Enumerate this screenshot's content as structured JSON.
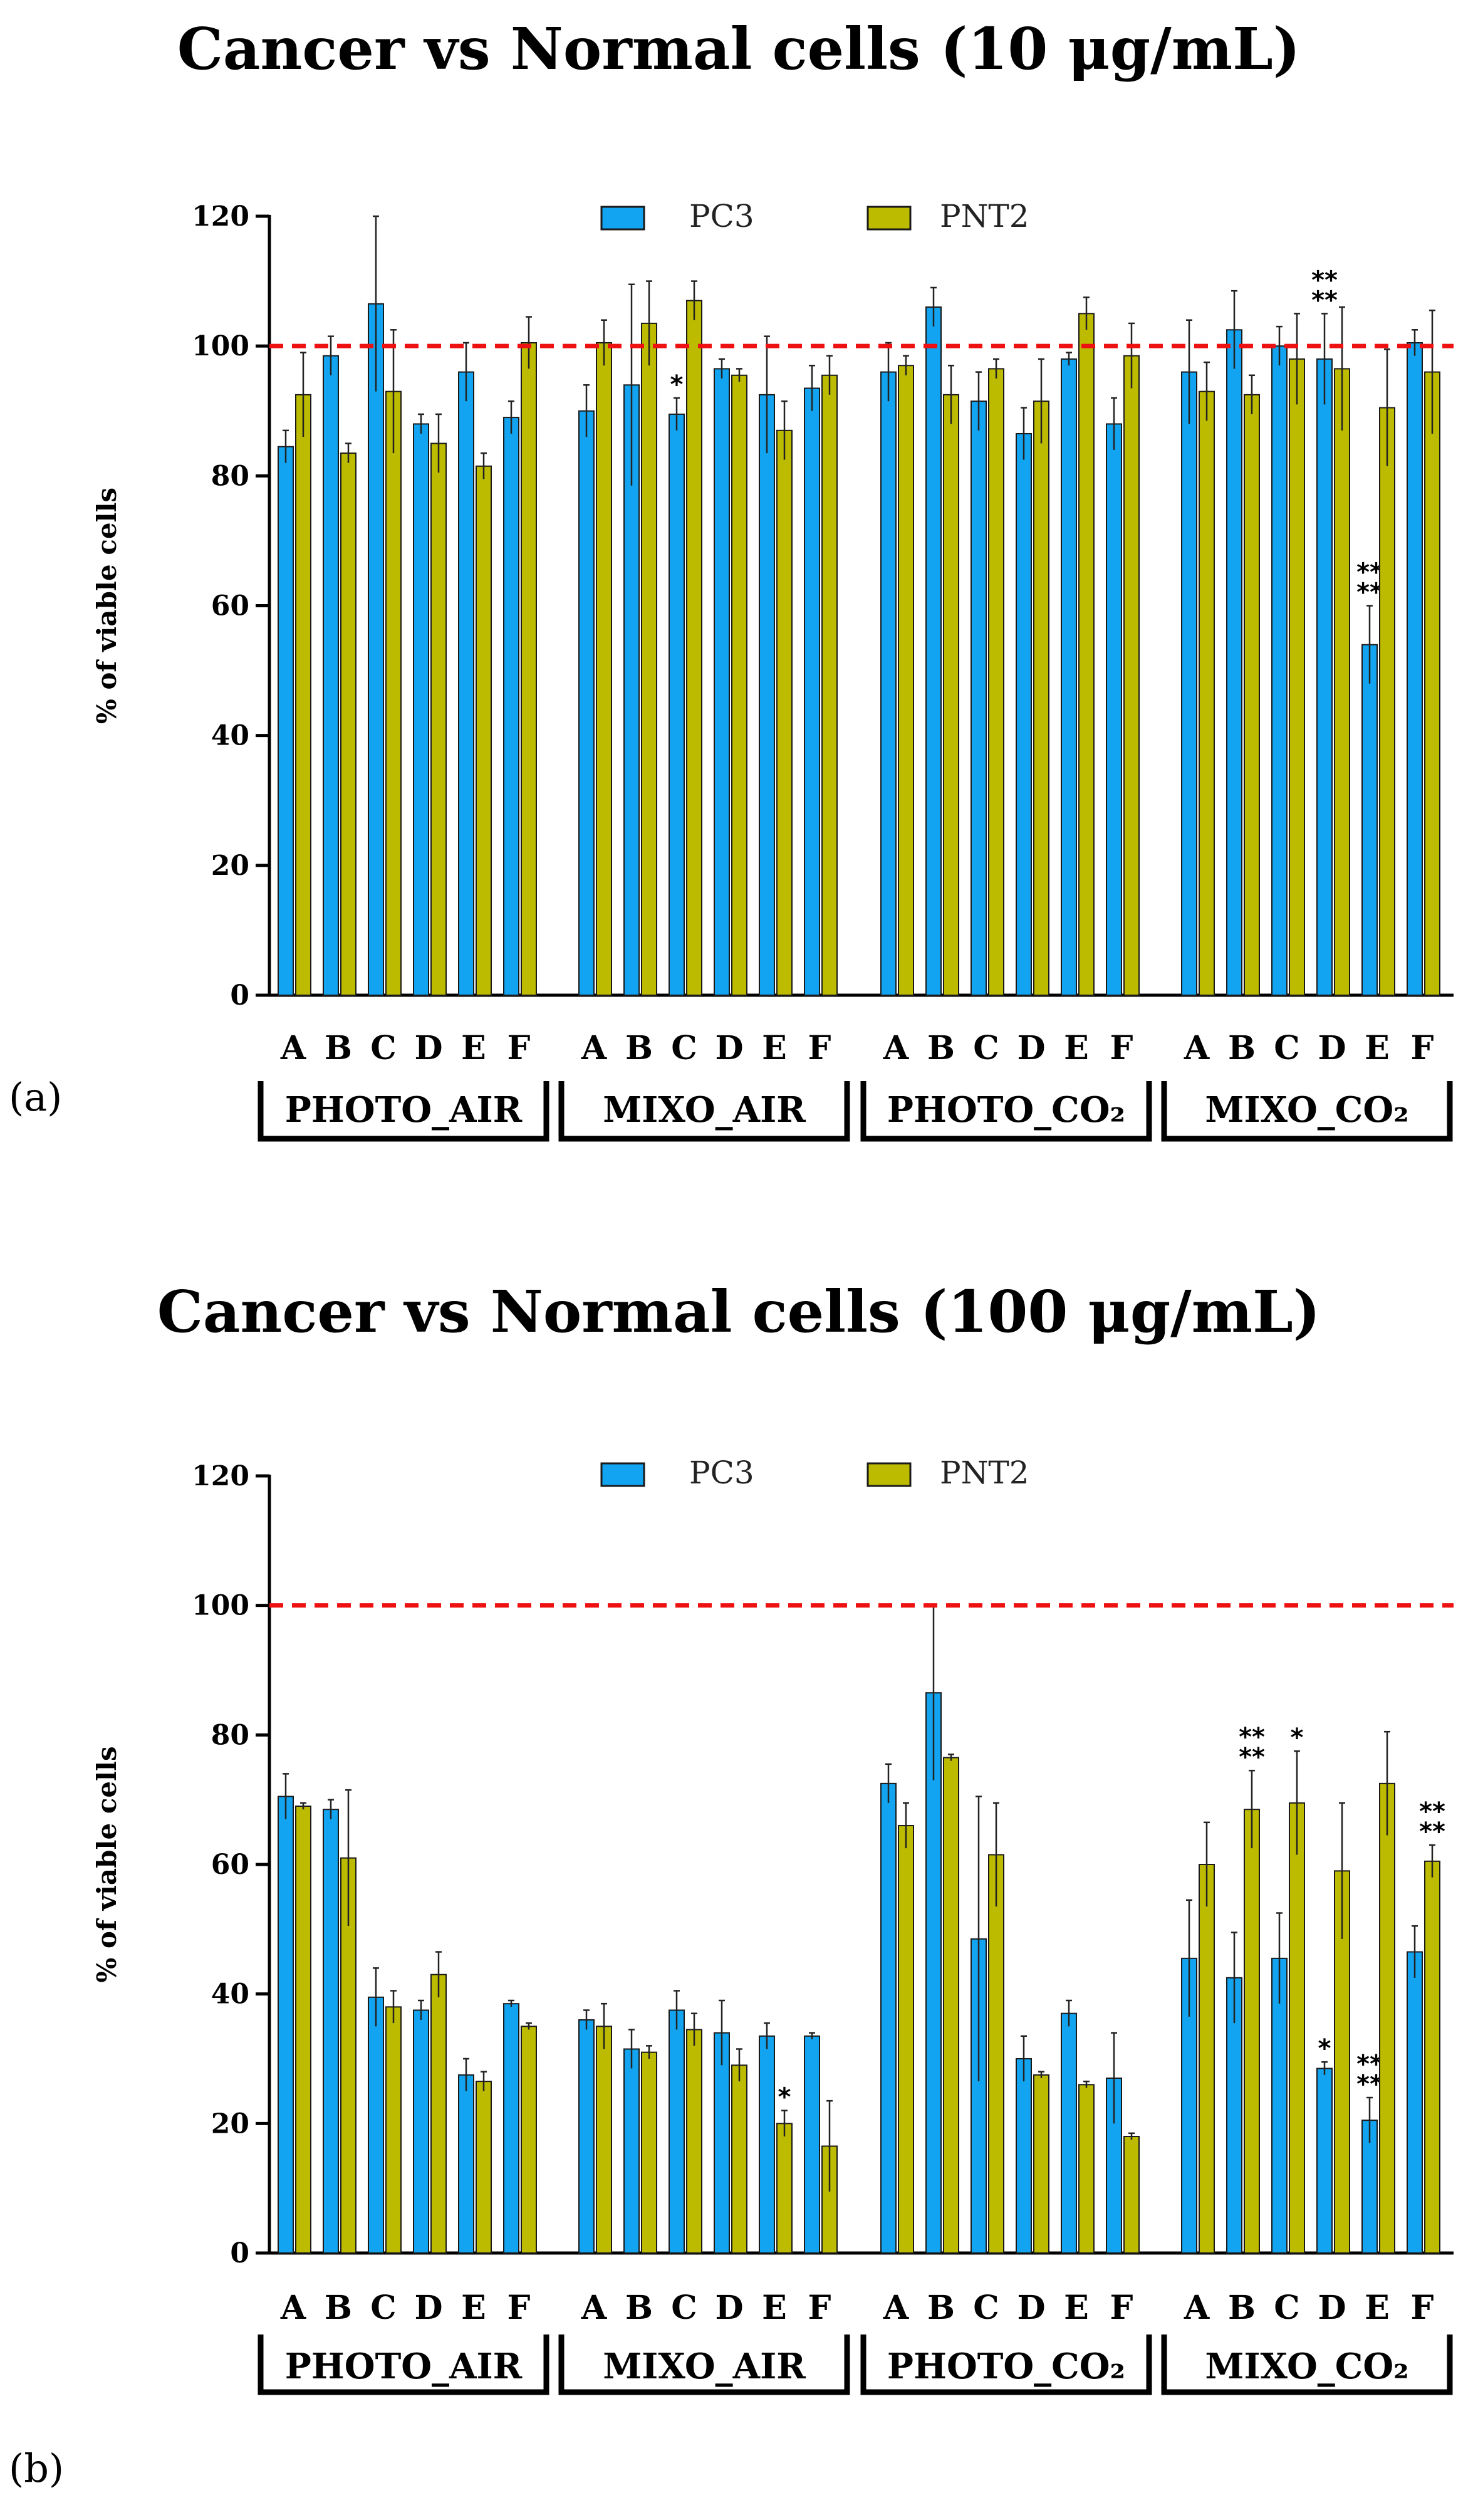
{
  "colors": {
    "pc3": "#12a4f0",
    "pnt2": "#bdbb00",
    "reference": "#ee1111",
    "axis": "#000000"
  },
  "chart_data": [
    {
      "type": "bar",
      "panel_label": "(a)",
      "title": "Cancer vs Normal cells  (10 μg/mL)",
      "ylabel": "% of viable cells",
      "xlabel": "",
      "ylim": [
        0,
        120
      ],
      "yticks": [
        "0",
        "20",
        "40",
        "60",
        "80",
        "100",
        "120"
      ],
      "reference_line": 100,
      "legend": [
        "PC3",
        "PNT2"
      ],
      "legend_position": "top-center",
      "groups": [
        {
          "name": "PHOTO_AIR",
          "categories": [
            "A",
            "B",
            "C",
            "D",
            "E",
            "F"
          ]
        },
        {
          "name": "MIXO_AIR",
          "categories": [
            "A",
            "B",
            "C",
            "D",
            "E",
            "F"
          ]
        },
        {
          "name": "PHOTO_CO₂",
          "categories": [
            "A",
            "B",
            "C",
            "D",
            "E",
            "F"
          ]
        },
        {
          "name": "MIXO_CO₂",
          "categories": [
            "A",
            "B",
            "C",
            "D",
            "E",
            "F"
          ]
        }
      ],
      "series": [
        {
          "name": "PC3",
          "values": [
            [
              84.5,
              98.5,
              106.5,
              88,
              96,
              89
            ],
            [
              90,
              94,
              89.5,
              96.5,
              92.5,
              93.5
            ],
            [
              96,
              106,
              91.5,
              86.5,
              98,
              88
            ],
            [
              96,
              102.5,
              100,
              98,
              54,
              100.5
            ]
          ],
          "errors": [
            [
              2.5,
              3,
              13.5,
              1.5,
              4.5,
              2.5
            ],
            [
              4,
              15.5,
              2.5,
              1.5,
              9,
              3.5
            ],
            [
              4.5,
              3,
              4.5,
              4,
              1,
              4
            ],
            [
              8,
              6,
              3,
              7,
              6,
              2
            ]
          ],
          "annotations": [
            [
              "",
              "",
              "",
              "",
              "",
              ""
            ],
            [
              "",
              "",
              "*",
              "",
              "",
              ""
            ],
            [
              "",
              "",
              "",
              "",
              "",
              ""
            ],
            [
              "",
              "",
              "",
              "**",
              "**",
              ""
            ]
          ]
        },
        {
          "name": "PNT2",
          "values": [
            [
              92.5,
              83.5,
              93,
              85,
              81.5,
              100.5
            ],
            [
              100.5,
              103.5,
              107,
              95.5,
              87,
              95.5
            ],
            [
              97,
              92.5,
              96.5,
              91.5,
              105,
              98.5
            ],
            [
              93,
              92.5,
              98,
              96.5,
              90.5,
              96
            ]
          ],
          "errors": [
            [
              6.5,
              1.5,
              9.5,
              4.5,
              2,
              4
            ],
            [
              3.5,
              6.5,
              3,
              1,
              4.5,
              3
            ],
            [
              1.5,
              4.5,
              1.5,
              6.5,
              2.5,
              5
            ],
            [
              4.5,
              3,
              7,
              9.5,
              9,
              9.5
            ]
          ],
          "annotations": [
            [
              "",
              "",
              "",
              "",
              "",
              ""
            ],
            [
              "",
              "",
              "",
              "",
              "",
              ""
            ],
            [
              "",
              "",
              "",
              "",
              "",
              ""
            ],
            [
              "",
              "",
              "",
              "",
              "",
              ""
            ]
          ]
        }
      ]
    },
    {
      "type": "bar",
      "panel_label": "(b)",
      "title": "Cancer vs Normal cells  (100 μg/mL)",
      "ylabel": "% of viable cells",
      "xlabel": "",
      "ylim": [
        0,
        120
      ],
      "yticks": [
        "0",
        "20",
        "40",
        "60",
        "80",
        "100",
        "120"
      ],
      "reference_line": 100,
      "legend": [
        "PC3",
        "PNT2"
      ],
      "legend_position": "top-center",
      "groups": [
        {
          "name": "PHOTO_AIR",
          "categories": [
            "A",
            "B",
            "C",
            "D",
            "E",
            "F"
          ]
        },
        {
          "name": "MIXO_AIR",
          "categories": [
            "A",
            "B",
            "C",
            "D",
            "E",
            "F"
          ]
        },
        {
          "name": "PHOTO_CO₂",
          "categories": [
            "A",
            "B",
            "C",
            "D",
            "E",
            "F"
          ]
        },
        {
          "name": "MIXO_CO₂",
          "categories": [
            "A",
            "B",
            "C",
            "D",
            "E",
            "F"
          ]
        }
      ],
      "series": [
        {
          "name": "PC3",
          "values": [
            [
              70.5,
              68.5,
              39.5,
              37.5,
              27.5,
              38.5
            ],
            [
              36,
              31.5,
              37.5,
              34,
              33.5,
              33.5
            ],
            [
              72.5,
              86.5,
              48.5,
              30,
              37,
              27
            ],
            [
              45.5,
              42.5,
              45.5,
              28.5,
              20.5,
              46.5
            ]
          ],
          "errors": [
            [
              3.5,
              1.5,
              4.5,
              1.5,
              2.5,
              0.5
            ],
            [
              1.5,
              3,
              3,
              5,
              2,
              0.5
            ],
            [
              3,
              13.5,
              22,
              3.5,
              2,
              7
            ],
            [
              9,
              7,
              7,
              1,
              3.5,
              4
            ]
          ],
          "annotations": [
            [
              "",
              "",
              "",
              "",
              "",
              ""
            ],
            [
              "",
              "",
              "",
              "",
              "",
              ""
            ],
            [
              "",
              "",
              "",
              "",
              "",
              ""
            ],
            [
              "",
              "",
              "",
              "*",
              "**",
              ""
            ]
          ]
        },
        {
          "name": "PNT2",
          "values": [
            [
              69,
              61,
              38,
              43,
              26.5,
              35
            ],
            [
              35,
              31,
              34.5,
              29,
              20,
              16.5
            ],
            [
              66,
              76.5,
              61.5,
              27.5,
              26,
              18
            ],
            [
              60,
              68.5,
              69.5,
              59,
              72.5,
              60.5
            ]
          ],
          "errors": [
            [
              0.5,
              10.5,
              2.5,
              3.5,
              1.5,
              0.5
            ],
            [
              3.5,
              1,
              2.5,
              2.5,
              2,
              7
            ],
            [
              3.5,
              0.5,
              8,
              0.5,
              0.5,
              0.5
            ],
            [
              6.5,
              6,
              8,
              10.5,
              8,
              2.5
            ]
          ],
          "annotations": [
            [
              "",
              "",
              "",
              "",
              "",
              ""
            ],
            [
              "",
              "",
              "",
              "",
              "*",
              ""
            ],
            [
              "",
              "",
              "",
              "",
              "",
              ""
            ],
            [
              "",
              "**",
              "*",
              "",
              "",
              "**"
            ]
          ]
        }
      ]
    }
  ]
}
